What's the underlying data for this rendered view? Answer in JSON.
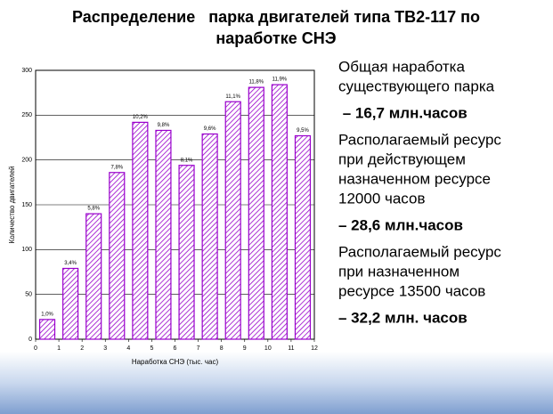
{
  "chart_data": {
    "type": "bar",
    "title": [
      "Распределение   парка двигателей типа ТВ2-117 по",
      "наработке СНЭ"
    ],
    "x_label": "Наработка СНЭ (тыс. час)",
    "y_label": "Количество двигателей",
    "x": [
      0.5,
      1.5,
      2.5,
      3.5,
      4.5,
      5.5,
      6.5,
      7.5,
      8.5,
      9.5,
      10.5,
      11.5
    ],
    "values": [
      22,
      79,
      140,
      186,
      242,
      233,
      194,
      229,
      265,
      281,
      284,
      227
    ],
    "percent_labels": [
      "1,0%",
      "3,4%",
      "5,8%",
      "7,8%",
      "10,2%",
      "9,8%",
      "8,1%",
      "9,6%",
      "11,1%",
      "11,8%",
      "11,9%",
      "9,5%"
    ],
    "color": "#9900cc",
    "xlim": [
      0,
      12
    ],
    "xticks": [
      0,
      1,
      2,
      3,
      4,
      5,
      6,
      7,
      8,
      9,
      10,
      11,
      12
    ],
    "ylim": [
      0,
      300
    ],
    "yticks": [
      0,
      50,
      100,
      150,
      200,
      250,
      300
    ],
    "grid": true
  },
  "text_blocks": [
    {
      "lines": [
        "Общая наработка",
        "существующего парка"
      ],
      "bold": false
    },
    {
      "lines": [
        " – 16,7 млн.часов"
      ],
      "bold": true
    },
    {
      "lines": [
        "Располагаемый ресурс",
        "при действующем",
        "назначенном ресурсе",
        "12000 часов"
      ],
      "bold": false
    },
    {
      "lines": [
        "– 28,6 млн.часов"
      ],
      "bold": true
    },
    {
      "lines": [
        "Располагаемый ресурс",
        "при назначенном",
        "ресурсе 13500 часов"
      ],
      "bold": false
    },
    {
      "lines": [
        "– 32,2 млн. часов"
      ],
      "bold": true
    }
  ]
}
